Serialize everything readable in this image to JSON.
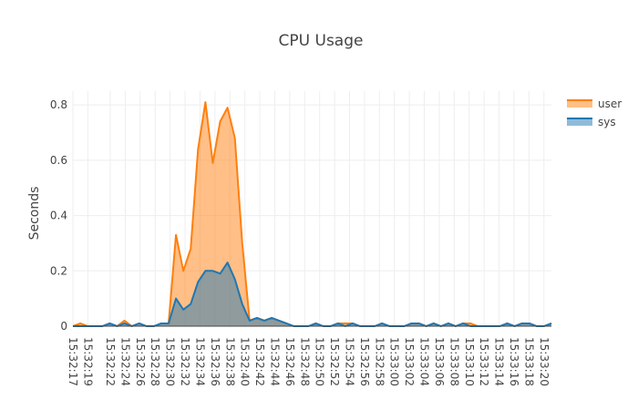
{
  "chart_data": {
    "type": "area",
    "title": "CPU Usage",
    "xlabel": "",
    "ylabel": "Seconds",
    "ylim": [
      0,
      0.85
    ],
    "yticks": [
      0,
      0.2,
      0.4,
      0.6,
      0.8
    ],
    "ytick_labels": [
      "0",
      "0.2",
      "0.4",
      "0.6",
      "0.8"
    ],
    "x_start": "15:32:17",
    "x_end": "15:33:21",
    "xtick_labels": [
      "15:32:17",
      "15:32:19",
      "15:32:22",
      "15:32:24",
      "15:32:26",
      "15:32:28",
      "15:32:30",
      "15:32:32",
      "15:32:34",
      "15:32:36",
      "15:32:38",
      "15:32:40",
      "15:32:42",
      "15:32:44",
      "15:32:46",
      "15:32:48",
      "15:32:50",
      "15:32:52",
      "15:32:54",
      "15:32:56",
      "15:32:58",
      "15:33:00",
      "15:33:02",
      "15:33:04",
      "15:33:06",
      "15:33:08",
      "15:33:10",
      "15:33:12",
      "15:33:14",
      "15:33:16",
      "15:33:18",
      "15:33:20"
    ],
    "grid": true,
    "legend_position": "top-right",
    "series": [
      {
        "name": "user",
        "color": "#ff7f0e",
        "values": [
          0,
          0.01,
          0,
          0,
          0,
          0.01,
          0,
          0.02,
          0,
          0.01,
          0,
          0,
          0.01,
          0.01,
          0.33,
          0.2,
          0.28,
          0.64,
          0.81,
          0.59,
          0.74,
          0.79,
          0.68,
          0.3,
          0.02,
          0.03,
          0.02,
          0.03,
          0.02,
          0.01,
          0,
          0,
          0,
          0.01,
          0,
          0,
          0.01,
          0.01,
          0.01,
          0,
          0,
          0,
          0.01,
          0,
          0,
          0,
          0.01,
          0.01,
          0,
          0.01,
          0,
          0.01,
          0,
          0.01,
          0.01,
          0,
          0,
          0,
          0,
          0.01,
          0,
          0.01,
          0.01,
          0,
          0,
          0.01
        ]
      },
      {
        "name": "sys",
        "color": "#1f77b4",
        "values": [
          0,
          0,
          0,
          0,
          0,
          0.01,
          0,
          0.01,
          0,
          0.01,
          0,
          0,
          0.01,
          0.01,
          0.1,
          0.06,
          0.08,
          0.16,
          0.2,
          0.2,
          0.19,
          0.23,
          0.17,
          0.08,
          0.02,
          0.03,
          0.02,
          0.03,
          0.02,
          0.01,
          0,
          0,
          0,
          0.01,
          0,
          0,
          0.01,
          0,
          0.01,
          0,
          0,
          0,
          0.01,
          0,
          0,
          0,
          0.01,
          0.01,
          0,
          0.01,
          0,
          0.01,
          0,
          0.01,
          0,
          0,
          0,
          0,
          0,
          0.01,
          0,
          0.01,
          0.01,
          0,
          0,
          0.01
        ]
      }
    ]
  }
}
